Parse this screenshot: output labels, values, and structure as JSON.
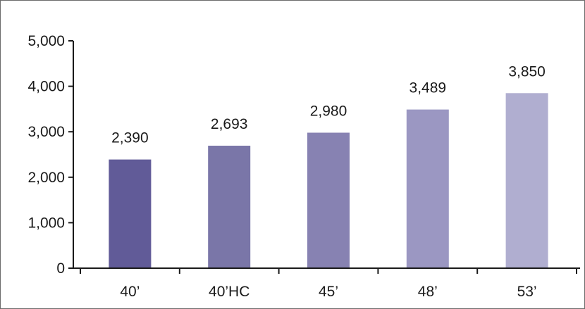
{
  "chart_data": {
    "type": "bar",
    "categories": [
      "40’",
      "40’HC",
      "45’",
      "48’",
      "53’"
    ],
    "values": [
      2390,
      2693,
      2980,
      3489,
      3850
    ],
    "data_labels": [
      "2,390",
      "2,693",
      "2,980",
      "3,489",
      "3,850"
    ],
    "yticks": [
      0,
      1000,
      2000,
      3000,
      4000,
      5000
    ],
    "ytick_labels": [
      "0",
      "1,000",
      "2,000",
      "3,000",
      "4,000",
      "5,000"
    ],
    "ylim": [
      0,
      5000
    ],
    "grid": false,
    "legend": "none",
    "bar_colors": [
      "#615b98",
      "#7a76a8",
      "#8782b2",
      "#9b97c2",
      "#b0aed0"
    ],
    "axis_color": "#1a1a1a"
  }
}
